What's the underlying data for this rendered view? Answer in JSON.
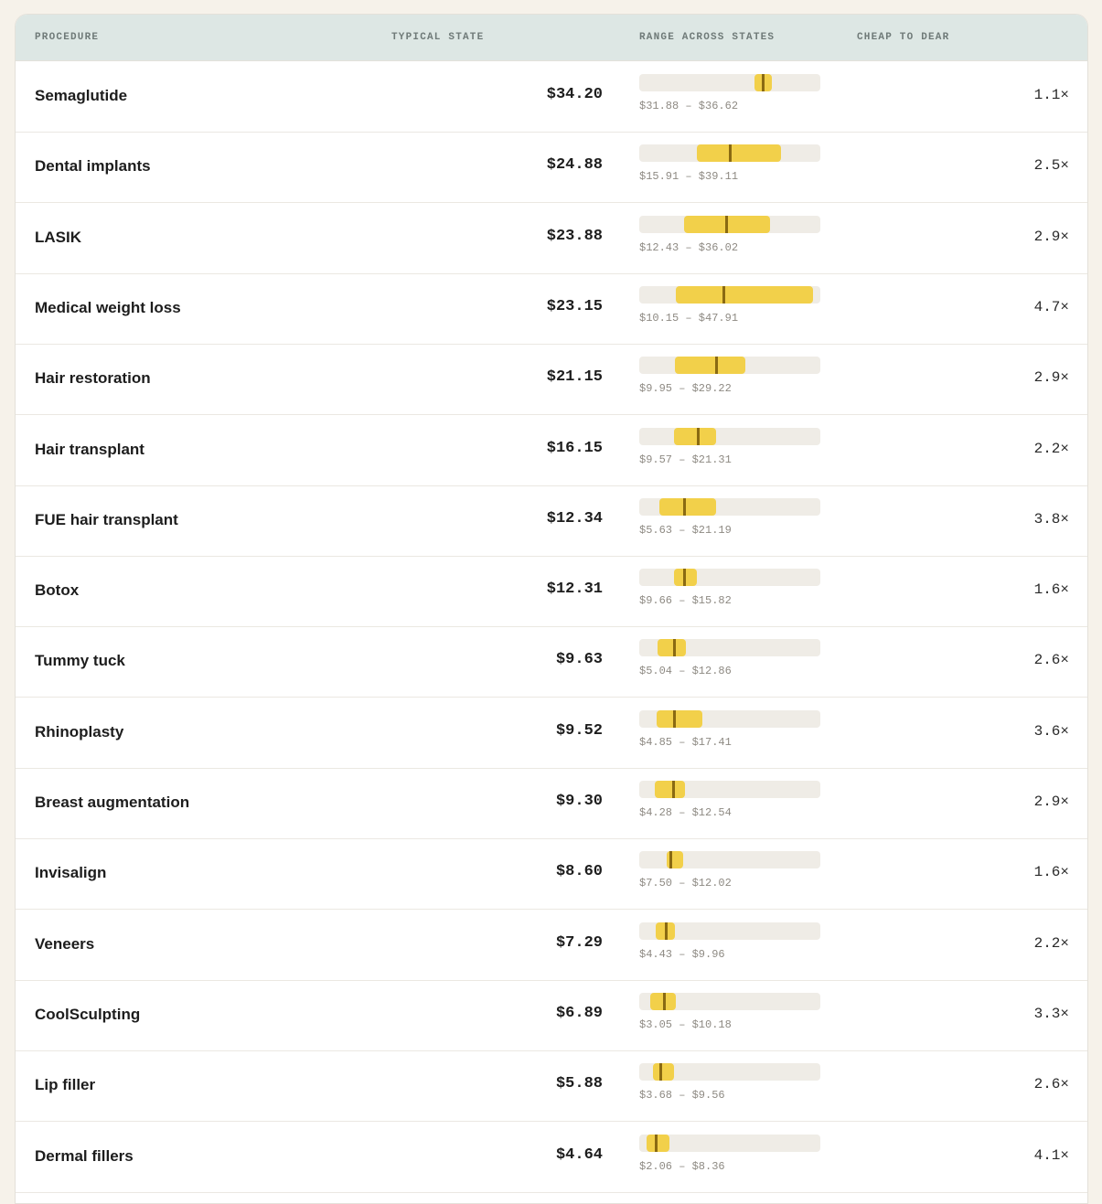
{
  "colors": {
    "page_bg": "#f6f2ea",
    "header_bg": "#dde7e4",
    "track": "#efece6",
    "range_fill": "#f2d04a",
    "median_tick": "#8a6a12"
  },
  "table": {
    "headers": {
      "procedure": "PROCEDURE",
      "typical": "TYPICAL STATE",
      "range": "RANGE ACROSS STATES",
      "ratio": "CHEAP TO DEAR"
    }
  },
  "chart_data": {
    "type": "table",
    "range_scale": [
      0,
      50
    ],
    "rows": [
      {
        "procedure": "Semaglutide",
        "typical": "$34.20",
        "typical_value": 34.2,
        "min": 31.88,
        "max": 36.62,
        "range_label": "$31.88 – $36.62",
        "ratio": "1.1×"
      },
      {
        "procedure": "Dental implants",
        "typical": "$24.88",
        "typical_value": 24.88,
        "min": 15.91,
        "max": 39.11,
        "range_label": "$15.91 – $39.11",
        "ratio": "2.5×"
      },
      {
        "procedure": "LASIK",
        "typical": "$23.88",
        "typical_value": 23.88,
        "min": 12.43,
        "max": 36.02,
        "range_label": "$12.43 – $36.02",
        "ratio": "2.9×"
      },
      {
        "procedure": "Medical weight loss",
        "typical": "$23.15",
        "typical_value": 23.15,
        "min": 10.15,
        "max": 47.91,
        "range_label": "$10.15 – $47.91",
        "ratio": "4.7×"
      },
      {
        "procedure": "Hair restoration",
        "typical": "$21.15",
        "typical_value": 21.15,
        "min": 9.95,
        "max": 29.22,
        "range_label": "$9.95 – $29.22",
        "ratio": "2.9×"
      },
      {
        "procedure": "Hair transplant",
        "typical": "$16.15",
        "typical_value": 16.15,
        "min": 9.57,
        "max": 21.31,
        "range_label": "$9.57 – $21.31",
        "ratio": "2.2×"
      },
      {
        "procedure": "FUE hair transplant",
        "typical": "$12.34",
        "typical_value": 12.34,
        "min": 5.63,
        "max": 21.19,
        "range_label": "$5.63 – $21.19",
        "ratio": "3.8×"
      },
      {
        "procedure": "Botox",
        "typical": "$12.31",
        "typical_value": 12.31,
        "min": 9.66,
        "max": 15.82,
        "range_label": "$9.66 – $15.82",
        "ratio": "1.6×"
      },
      {
        "procedure": "Tummy tuck",
        "typical": "$9.63",
        "typical_value": 9.63,
        "min": 5.04,
        "max": 12.86,
        "range_label": "$5.04 – $12.86",
        "ratio": "2.6×"
      },
      {
        "procedure": "Rhinoplasty",
        "typical": "$9.52",
        "typical_value": 9.52,
        "min": 4.85,
        "max": 17.41,
        "range_label": "$4.85 – $17.41",
        "ratio": "3.6×"
      },
      {
        "procedure": "Breast augmentation",
        "typical": "$9.30",
        "typical_value": 9.3,
        "min": 4.28,
        "max": 12.54,
        "range_label": "$4.28 – $12.54",
        "ratio": "2.9×"
      },
      {
        "procedure": "Invisalign",
        "typical": "$8.60",
        "typical_value": 8.6,
        "min": 7.5,
        "max": 12.02,
        "range_label": "$7.50 – $12.02",
        "ratio": "1.6×"
      },
      {
        "procedure": "Veneers",
        "typical": "$7.29",
        "typical_value": 7.29,
        "min": 4.43,
        "max": 9.96,
        "range_label": "$4.43 – $9.96",
        "ratio": "2.2×"
      },
      {
        "procedure": "CoolSculpting",
        "typical": "$6.89",
        "typical_value": 6.89,
        "min": 3.05,
        "max": 10.18,
        "range_label": "$3.05 – $10.18",
        "ratio": "3.3×"
      },
      {
        "procedure": "Lip filler",
        "typical": "$5.88",
        "typical_value": 5.88,
        "min": 3.68,
        "max": 9.56,
        "range_label": "$3.68 – $9.56",
        "ratio": "2.6×"
      },
      {
        "procedure": "Dermal fillers",
        "typical": "$4.64",
        "typical_value": 4.64,
        "min": 2.06,
        "max": 8.36,
        "range_label": "$2.06 – $8.36",
        "ratio": "4.1×"
      }
    ]
  }
}
